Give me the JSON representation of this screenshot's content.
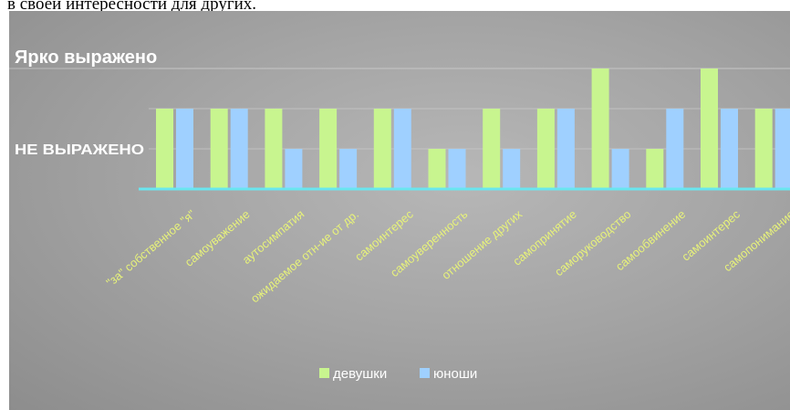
{
  "caption_fragment": "в своей интересности для других.",
  "colors": {
    "girls": "#c8f58f",
    "boys": "#9fd0ff",
    "baseline": "#69e6ef",
    "grid": "#c9c9c9",
    "tick_text": "#e7f27a",
    "level_text": "#ffffff"
  },
  "chart_data": {
    "type": "bar",
    "title": "",
    "xlabel": "",
    "ylabel": "",
    "y_levels": [
      {
        "label": "НЕ ВЫРАЖЕНО",
        "value": 1
      },
      {
        "label": "Ярко выражено",
        "value": 3
      }
    ],
    "ylim": [
      0,
      3.3
    ],
    "grid": true,
    "legend_position": "bottom",
    "categories": [
      "\"за\" собственное \"я\"",
      "самоуважение",
      "аутосимпатия",
      "ожидаемое отн-ие от др.",
      "самоинтерес",
      "самоуверенность",
      "отношение других",
      "самопринятие",
      "саморуководство",
      "самообвинение",
      "самоинтерес",
      "самопонимание"
    ],
    "series": [
      {
        "name": "девушки",
        "values": [
          2,
          2,
          2,
          2,
          2,
          1,
          2,
          2,
          3,
          1,
          3,
          2
        ]
      },
      {
        "name": "юноши",
        "values": [
          2,
          2,
          1,
          1,
          2,
          1,
          1,
          2,
          1,
          2,
          2,
          2
        ]
      }
    ]
  }
}
